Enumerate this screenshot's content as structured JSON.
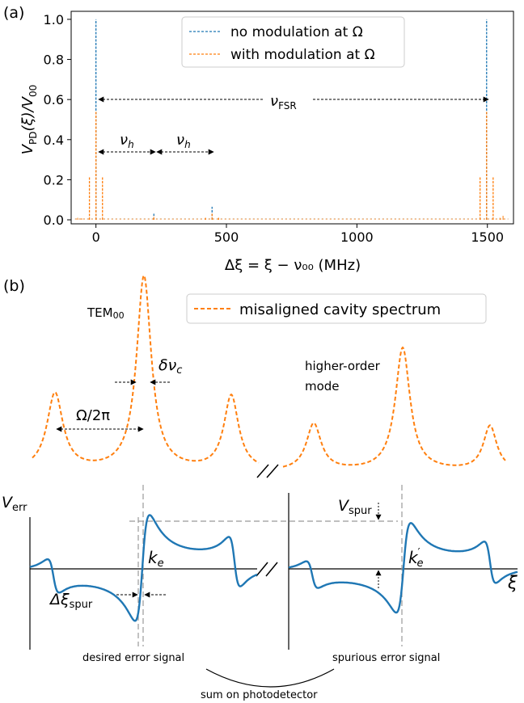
{
  "panel_a": {
    "label": "(a)",
    "ylabel_main": "V",
    "ylabel_sub1": "PD",
    "ylabel_mid": "(ξ)/V",
    "ylabel_sub2": "00",
    "xlabel": "Δξ = ξ − ν₀₀ (MHz)",
    "legend": [
      "no modulation at Ω",
      "with modulation at Ω"
    ],
    "fsr_label": "ν",
    "fsr_sub": "FSR",
    "nuh_label": "ν",
    "nuh_sub": "h"
  },
  "panel_b": {
    "label": "(b)",
    "legend": "misaligned cavity spectrum",
    "tem_main": "TEM",
    "tem_sub": "00",
    "delta_nu_c": "δν",
    "delta_nu_c_sub": "c",
    "omega": "Ω/2π",
    "higher_order_1": "higher-order",
    "higher_order_2": "mode",
    "verr_main": "V",
    "verr_sub": "err",
    "vspur_main": "V",
    "vspur_sub": "spur",
    "ke_main": "k",
    "ke_sub": "e",
    "kep_main": "k",
    "kep_sup": "′",
    "kep_sub": "e",
    "dxi_main": "Δξ",
    "dxi_sub": "spur",
    "xi": "ξ",
    "desired": "desired error signal",
    "spurious": "spurious error signal",
    "sum": "sum on photodetector"
  },
  "colors": {
    "blue": "#1f77b4",
    "orange": "#ff7f0e",
    "gray": "#999999"
  },
  "chart_data": [
    {
      "type": "line",
      "title": "",
      "xlabel": "Δξ = ξ − ν₀₀ (MHz)",
      "ylabel": "V_PD(ξ)/V_00",
      "xlim": [
        -95,
        1600
      ],
      "ylim": [
        -0.02,
        1.04
      ],
      "xticks": [
        0,
        500,
        1000,
        1500
      ],
      "yticks": [
        0.0,
        0.2,
        0.4,
        0.6,
        0.8,
        1.0
      ],
      "legend_position": "top-center",
      "series": [
        {
          "name": "no modulation at Ω",
          "style": "dashed",
          "peaks": [
            {
              "x": 0,
              "y": 1.0
            },
            {
              "x": 222,
              "y": 0.035
            },
            {
              "x": 445,
              "y": 0.065
            },
            {
              "x": 1497,
              "y": 1.0
            }
          ]
        },
        {
          "name": "with modulation at Ω",
          "style": "dashed",
          "peaks": [
            {
              "x": -25,
              "y": 0.215
            },
            {
              "x": 0,
              "y": 0.54
            },
            {
              "x": 25,
              "y": 0.215
            },
            {
              "x": 222,
              "y": 0.02
            },
            {
              "x": 420,
              "y": 0.01
            },
            {
              "x": 445,
              "y": 0.035
            },
            {
              "x": 470,
              "y": 0.01
            },
            {
              "x": 1472,
              "y": 0.215
            },
            {
              "x": 1497,
              "y": 0.54
            },
            {
              "x": 1522,
              "y": 0.215
            }
          ]
        }
      ],
      "annotations": [
        {
          "text": "ν_FSR",
          "from": 0,
          "to": 1497,
          "y": 0.6
        },
        {
          "text": "ν_h",
          "from": 0,
          "to": 222,
          "y": 0.325
        },
        {
          "text": "ν_h",
          "from": 222,
          "to": 445,
          "y": 0.325
        }
      ]
    },
    {
      "type": "line",
      "title": "",
      "legend": [
        "misaligned cavity spectrum"
      ],
      "note": "schematic, no axes values",
      "series": [
        {
          "name": "misaligned cavity spectrum"
        }
      ]
    }
  ]
}
